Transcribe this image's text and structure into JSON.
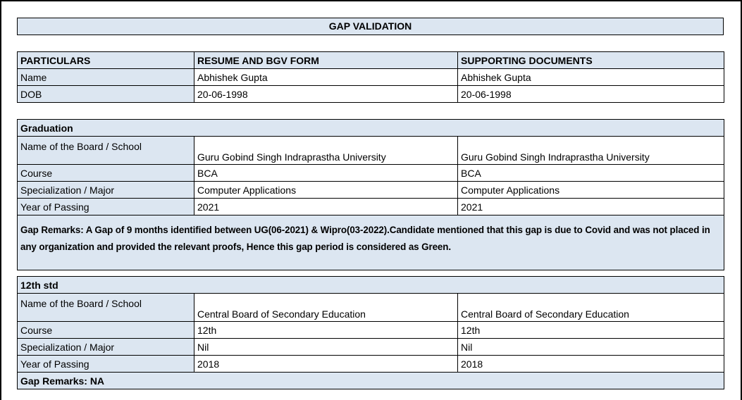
{
  "title": "GAP VALIDATION",
  "headers": [
    "PARTICULARS",
    "RESUME AND BGV FORM",
    "SUPPORTING DOCUMENTS"
  ],
  "personal": [
    {
      "label": "Name",
      "resume": "Abhishek Gupta",
      "docs": "Abhishek Gupta"
    },
    {
      "label": "DOB",
      "resume": "20-06-1998",
      "docs": "20-06-1998"
    }
  ],
  "graduation": {
    "heading": "Graduation",
    "rows": [
      {
        "label": "Name of the Board / School",
        "resume": "Guru Gobind Singh Indraprastha University",
        "docs": "Guru Gobind Singh Indraprastha University"
      },
      {
        "label": "Course",
        "resume": "BCA",
        "docs": "BCA"
      },
      {
        "label": "Specialization / Major",
        "resume": "Computer Applications",
        "docs": "Computer Applications"
      },
      {
        "label": "Year of Passing",
        "resume": "2021",
        "docs": "2021"
      }
    ],
    "remarks": "Gap Remarks: A Gap of 9 months identified between UG(06-2021) & Wipro(03-2022).Candidate mentioned that this gap is due to Covid and was not placed in any organization and provided the relevant proofs, Hence this gap period is considered as Green."
  },
  "twelfth": {
    "heading": "12th std",
    "rows": [
      {
        "label": "Name of the Board / School",
        "resume": "Central Board of Secondary Education",
        "docs": "Central Board of Secondary Education"
      },
      {
        "label": "Course",
        "resume": "12th",
        "docs": "12th"
      },
      {
        "label": "Specialization / Major",
        "resume": "Nil",
        "docs": "Nil"
      },
      {
        "label": "Year of Passing",
        "resume": "2018",
        "docs": "2018"
      }
    ],
    "remarks": "Gap Remarks: NA"
  },
  "colors": {
    "fill": "#dce6f1"
  }
}
